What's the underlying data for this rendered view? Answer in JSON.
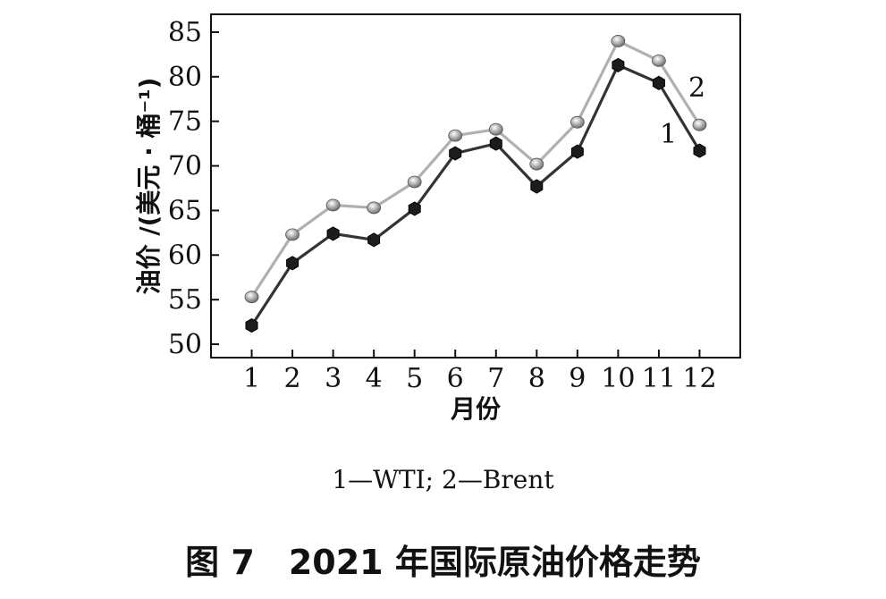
{
  "chart_data": {
    "type": "line",
    "x": [
      1,
      2,
      3,
      4,
      5,
      6,
      7,
      8,
      9,
      10,
      11,
      12
    ],
    "xticks": [
      "1",
      "2",
      "3",
      "4",
      "5",
      "6",
      "7",
      "8",
      "9",
      "10",
      "11",
      "12"
    ],
    "yticks": [
      "50",
      "55",
      "60",
      "65",
      "70",
      "75",
      "80",
      "85"
    ],
    "xlabel": "月份",
    "ylabel": "油价 /(美元 · 桶⁻¹)",
    "xlim": [
      0,
      13
    ],
    "ylim": [
      48.5,
      87
    ],
    "grid": false,
    "series": [
      {
        "name": "1",
        "values": [
          52.1,
          59.1,
          62.4,
          61.7,
          65.2,
          71.4,
          72.5,
          67.7,
          71.6,
          81.3,
          79.3,
          71.7
        ],
        "color": "#333333",
        "marker": "hexagon"
      },
      {
        "name": "2",
        "values": [
          55.3,
          62.3,
          65.6,
          65.3,
          68.2,
          73.4,
          74.1,
          70.2,
          74.9,
          84.0,
          81.8,
          74.6
        ],
        "color": "#b0b0b0",
        "marker": "sphere"
      }
    ],
    "legend": "1—WTI; 2—Brent",
    "caption": "图 7　2021 年国际原油价格走势"
  }
}
